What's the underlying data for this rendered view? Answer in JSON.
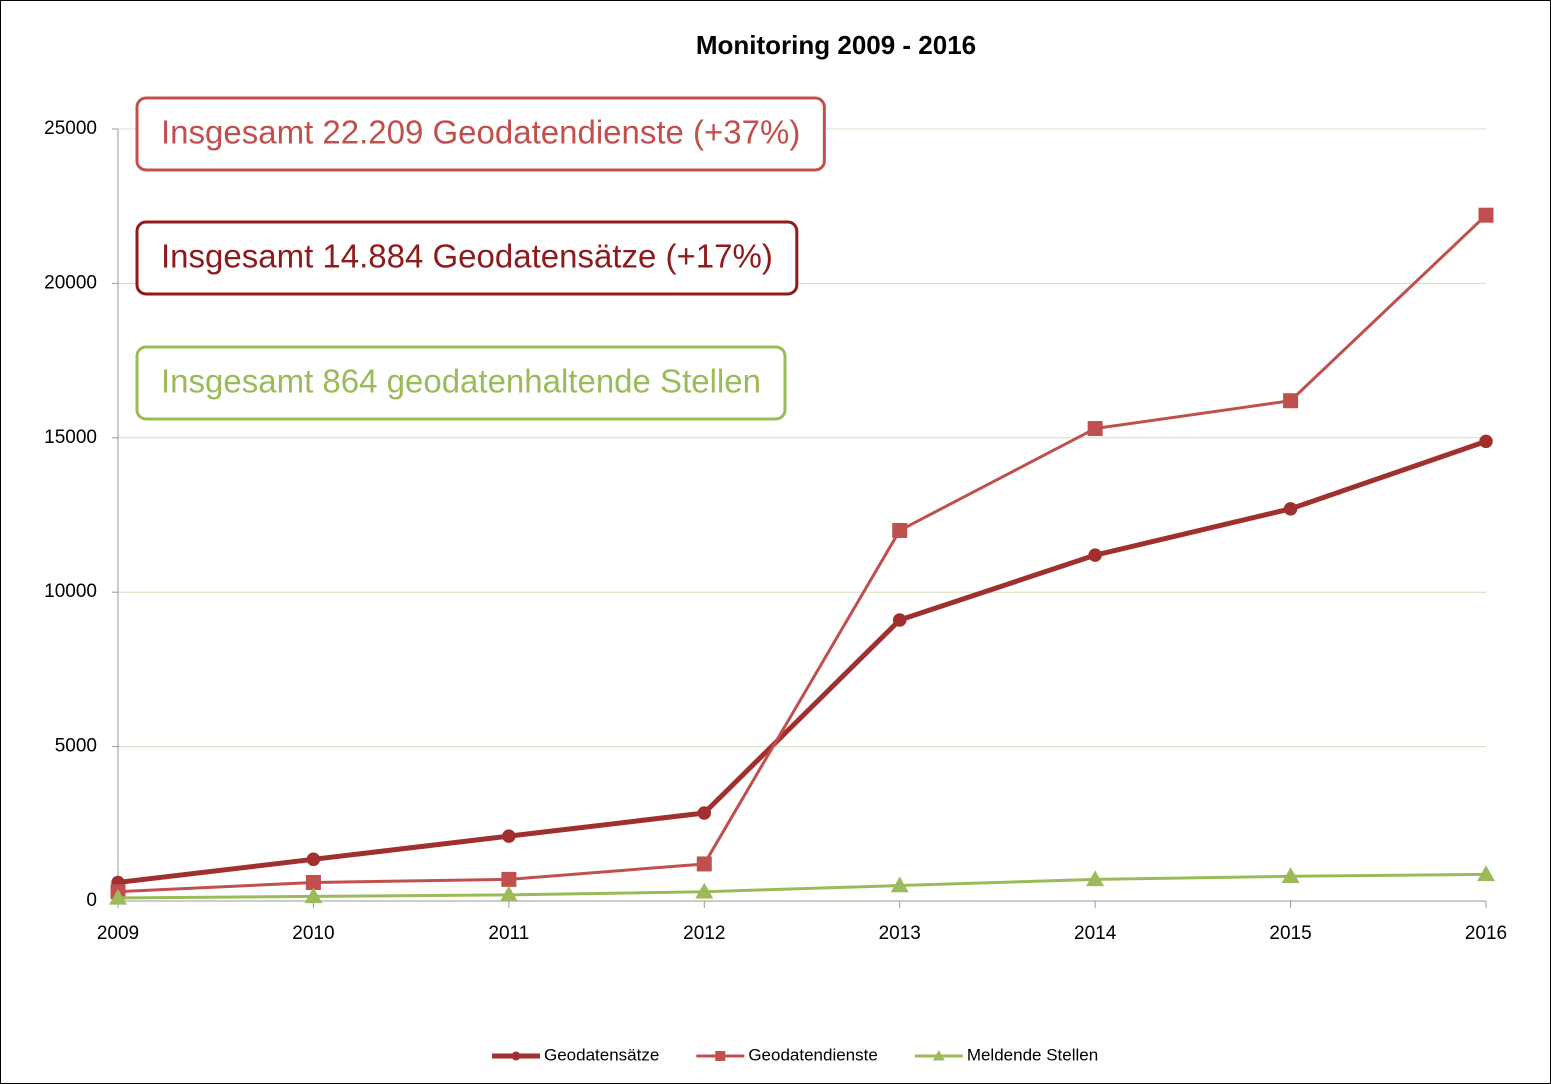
{
  "chart_data": {
    "type": "line",
    "title": "Monitoring 2009 - 2016",
    "categories": [
      "2009",
      "2010",
      "2011",
      "2012",
      "2013",
      "2014",
      "2015",
      "2016"
    ],
    "series": [
      {
        "name": "Geodatensätze",
        "color": "#a0302e",
        "marker": "circle",
        "values": [
          600,
          1350,
          2100,
          2850,
          9100,
          11200,
          12700,
          14884
        ]
      },
      {
        "name": "Geodatendienste",
        "color": "#c0504d",
        "marker": "square",
        "values": [
          300,
          600,
          700,
          1200,
          12000,
          15300,
          16200,
          22209
        ]
      },
      {
        "name": "Meldende Stellen",
        "color": "#9bbb59",
        "marker": "triangle",
        "values": [
          100,
          150,
          200,
          300,
          500,
          700,
          800,
          864
        ]
      }
    ],
    "ylim": [
      0,
      25000
    ],
    "yticks": [
      0,
      5000,
      10000,
      15000,
      20000,
      25000
    ],
    "grid": true,
    "legend": "bottom",
    "annotations": [
      {
        "text": "Insgesamt 22.209 Geodatendienste (+37%)",
        "color": "#c0504d"
      },
      {
        "text": "Insgesamt 14.884 Geodatensätze (+17%)",
        "color": "#8e1b1b"
      },
      {
        "text": "Insgesamt 864 geodatenhaltende Stellen",
        "color": "#9bbb59"
      }
    ]
  }
}
